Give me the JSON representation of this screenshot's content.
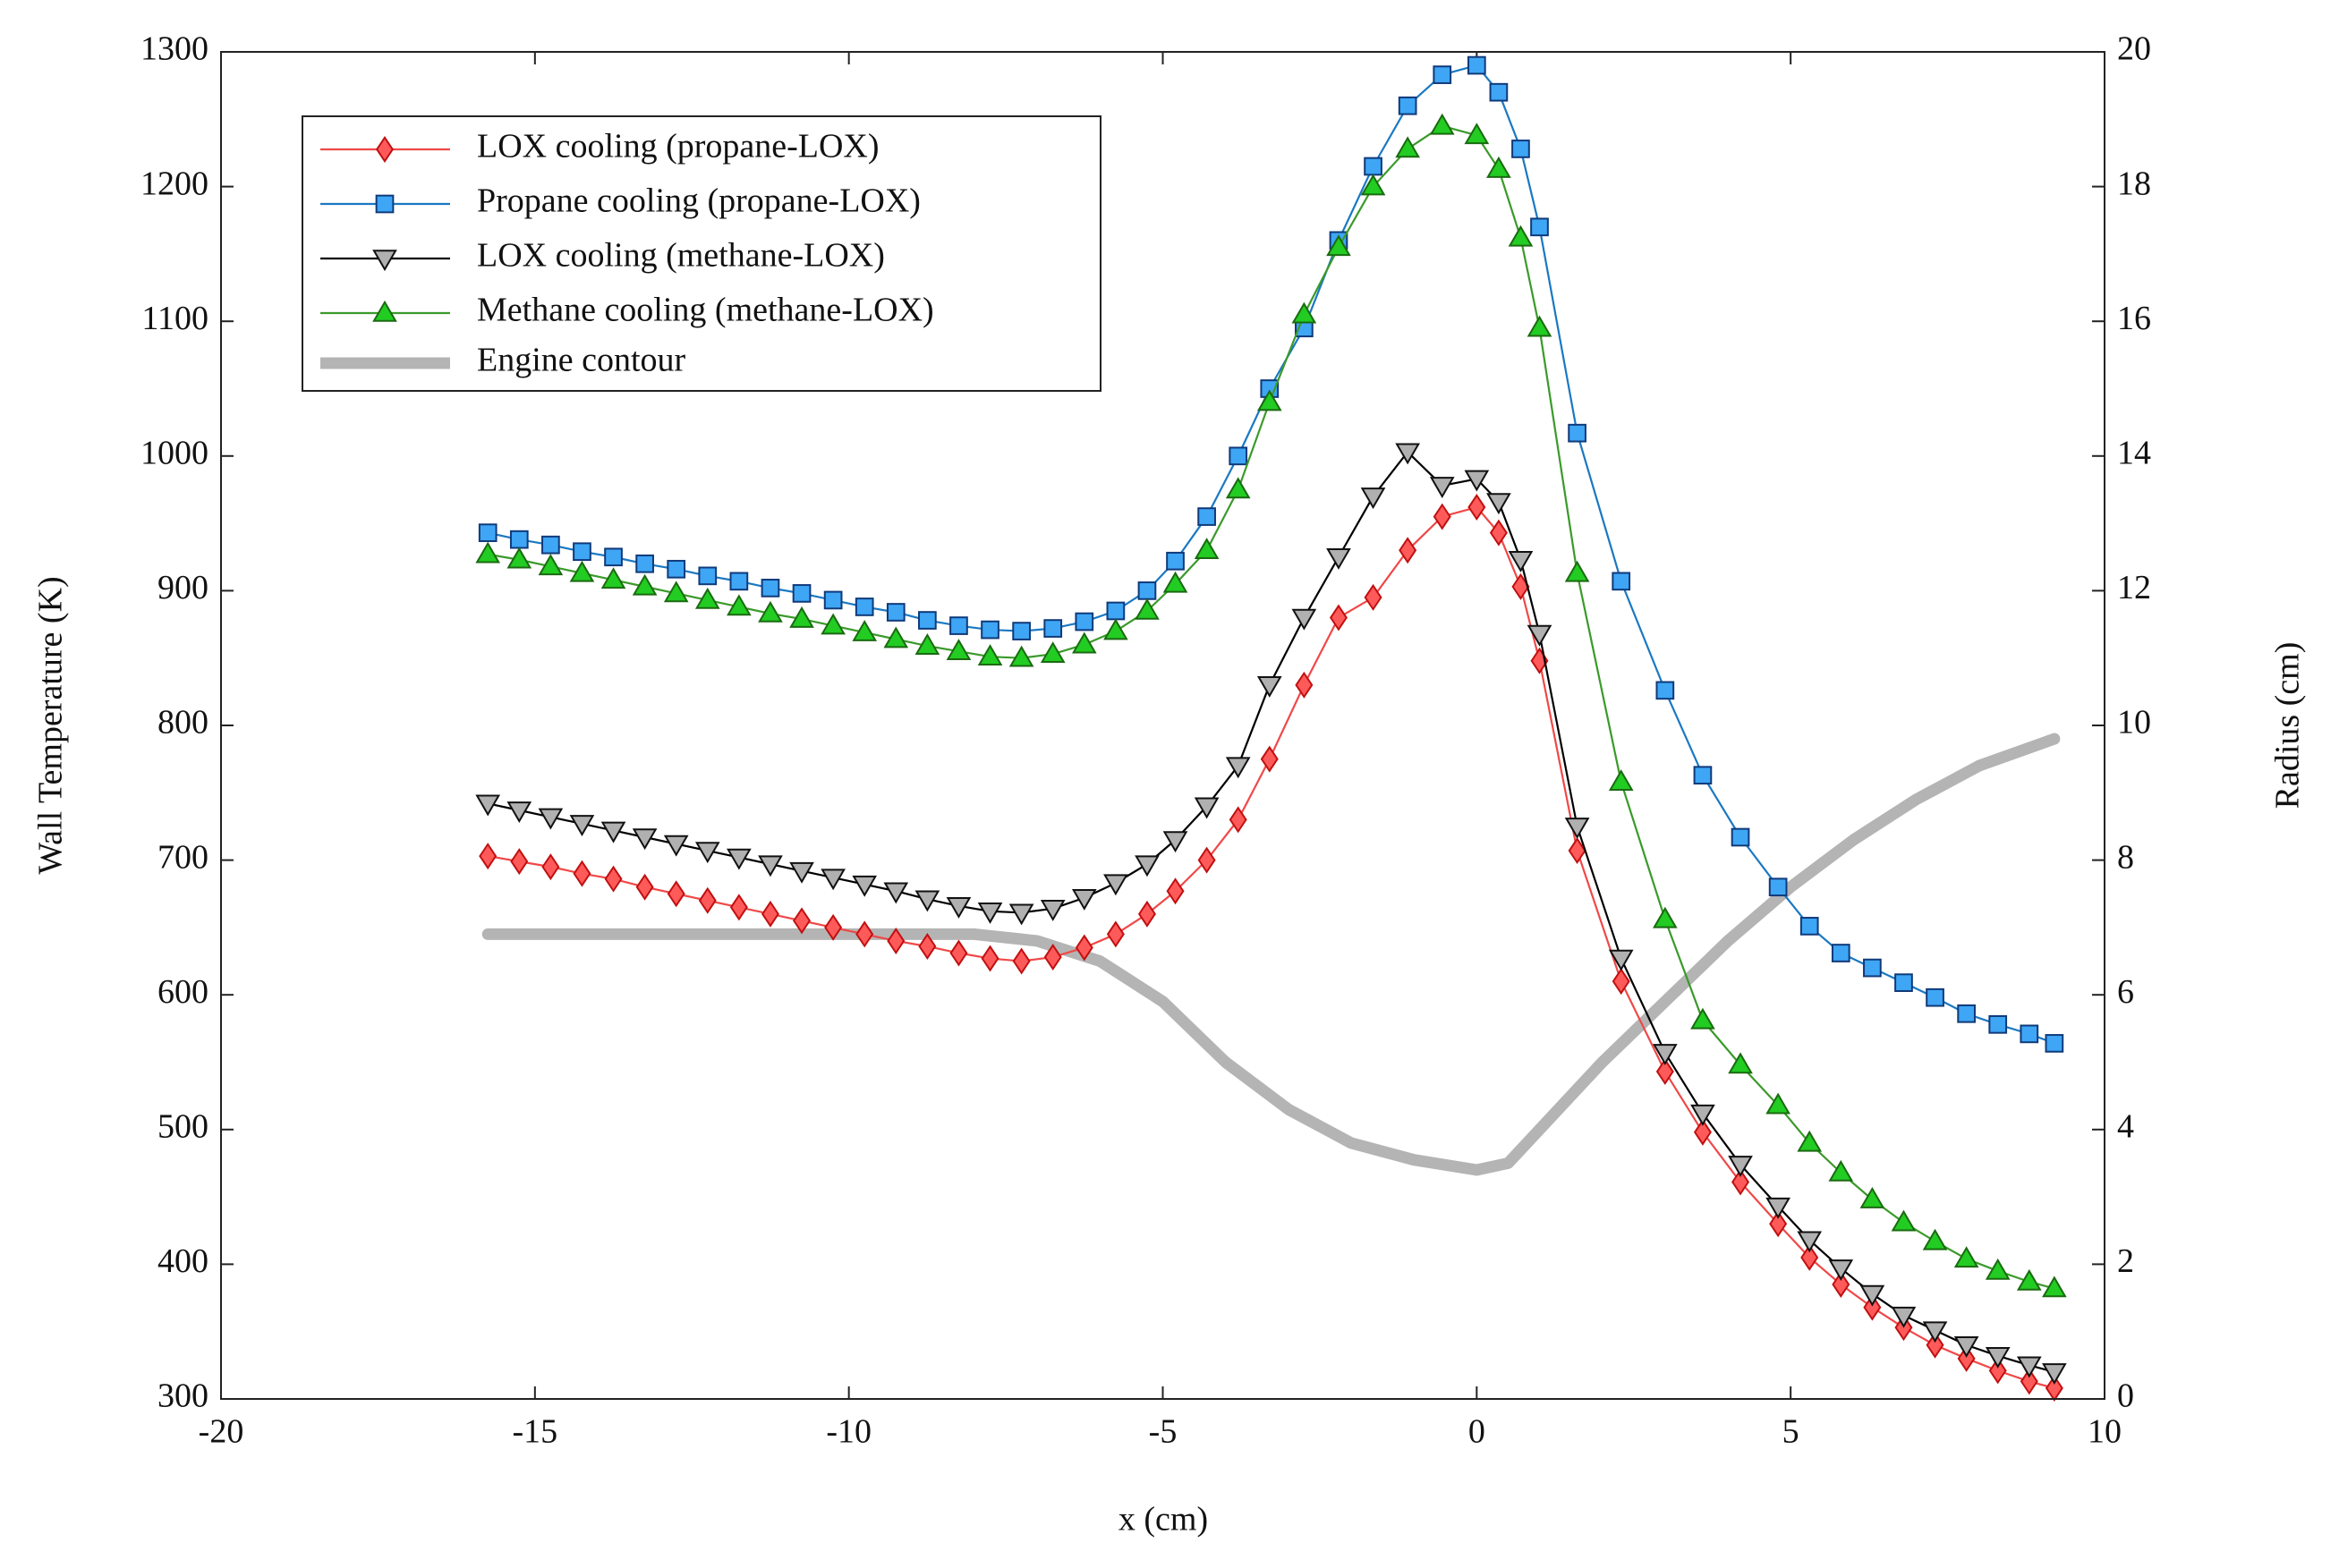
{
  "chart_data": {
    "type": "line",
    "xlabel": "x (cm)",
    "ylabel": "Wall Temperature (K)",
    "y2label": "Radius (cm)",
    "x": [
      -15.75,
      -15.25,
      -14.75,
      -14.25,
      -13.75,
      -13.25,
      -12.75,
      -12.25,
      -11.75,
      -11.25,
      -10.75,
      -10.25,
      -9.75,
      -9.25,
      -8.75,
      -8.25,
      -7.75,
      -7.25,
      -6.75,
      -6.25,
      -5.75,
      -5.25,
      -4.8,
      -4.3,
      -3.8,
      -3.3,
      -2.75,
      -2.2,
      -1.65,
      -1.1,
      -0.55,
      0,
      0.35,
      0.7,
      1,
      1.6,
      2.3,
      3,
      3.6,
      4.2,
      4.8,
      5.3,
      5.8,
      6.3,
      6.8,
      7.3,
      7.8,
      8.3,
      8.8,
      9.2
    ],
    "series": [
      {
        "name": "LOX cooling (propane-LOX)",
        "color": "#f04848",
        "marker": "diamond",
        "values": [
          703,
          699,
          695,
          690,
          686,
          680,
          675,
          670,
          665,
          660,
          655,
          650,
          645,
          640,
          636,
          631,
          627,
          625,
          628,
          635,
          645,
          660,
          677,
          700,
          730,
          775,
          830,
          880,
          895,
          930,
          955,
          962,
          943,
          903,
          848,
          707,
          610,
          543,
          498,
          461,
          430,
          405,
          385,
          368,
          353,
          340,
          330,
          321,
          313,
          308
        ]
      },
      {
        "name": "Propane cooling (propane-LOX)",
        "color": "#1a78c2",
        "marker": "square",
        "values": [
          943,
          938,
          934,
          929,
          925,
          920,
          916,
          911,
          907,
          902,
          898,
          893,
          888,
          884,
          878,
          874,
          871,
          870,
          872,
          877,
          885,
          900,
          922,
          955,
          1000,
          1050,
          1095,
          1160,
          1215,
          1260,
          1283,
          1290,
          1270,
          1228,
          1170,
          1017,
          907,
          826,
          763,
          717,
          680,
          651,
          631,
          620,
          609,
          598,
          586,
          578,
          571,
          564
        ]
      },
      {
        "name": "LOX cooling (methane-LOX)",
        "color": "#000000",
        "marker": "triangle-down",
        "values": [
          742,
          737,
          732,
          727,
          722,
          717,
          712,
          707,
          702,
          697,
          692,
          687,
          682,
          677,
          671,
          666,
          662,
          661,
          664,
          672,
          683,
          697,
          715,
          740,
          770,
          830,
          880,
          925,
          970,
          1003,
          978,
          983,
          966,
          923,
          868,
          725,
          627,
          557,
          512,
          474,
          443,
          418,
          397,
          378,
          362,
          351,
          340,
          332,
          325,
          320
        ]
      },
      {
        "name": "Methane cooling (methane-LOX)",
        "color": "#3a9a2a",
        "marker": "triangle-up",
        "values": [
          927,
          923,
          918,
          913,
          908,
          903,
          898,
          893,
          888,
          883,
          879,
          874,
          869,
          864,
          859,
          855,
          851,
          850,
          853,
          860,
          870,
          885,
          905,
          930,
          975,
          1040,
          1105,
          1155,
          1200,
          1228,
          1245,
          1238,
          1213,
          1162,
          1095,
          913,
          758,
          656,
          581,
          548,
          518,
          490,
          468,
          448,
          431,
          417,
          404,
          395,
          387,
          382
        ]
      },
      {
        "name": "Engine contour",
        "color": "#b4b4b4",
        "axis": "y2",
        "x": [
          -15.75,
          -8,
          -7,
          -6,
          -5,
          -4,
          -3,
          -2,
          -1,
          0,
          0.5,
          1,
          2,
          3,
          4,
          5,
          6,
          7,
          8,
          9.2
        ],
        "values": [
          6.9,
          6.9,
          6.8,
          6.5,
          5.9,
          5.0,
          4.3,
          3.8,
          3.55,
          3.4,
          3.5,
          4.0,
          5.0,
          5.9,
          6.8,
          7.6,
          8.3,
          8.9,
          9.4,
          9.8
        ]
      }
    ],
    "xlim": [
      -20,
      10
    ],
    "xticks": [
      -20,
      -15,
      -10,
      -5,
      0,
      5,
      10
    ],
    "ylim": [
      300,
      1300
    ],
    "yticks": [
      300,
      400,
      500,
      600,
      700,
      800,
      900,
      1000,
      1100,
      1200,
      1300
    ],
    "y2lim": [
      0,
      20
    ],
    "y2ticks": [
      0,
      2,
      4,
      6,
      8,
      10,
      12,
      14,
      16,
      18,
      20
    ],
    "legend": "upper left",
    "grid": false
  }
}
